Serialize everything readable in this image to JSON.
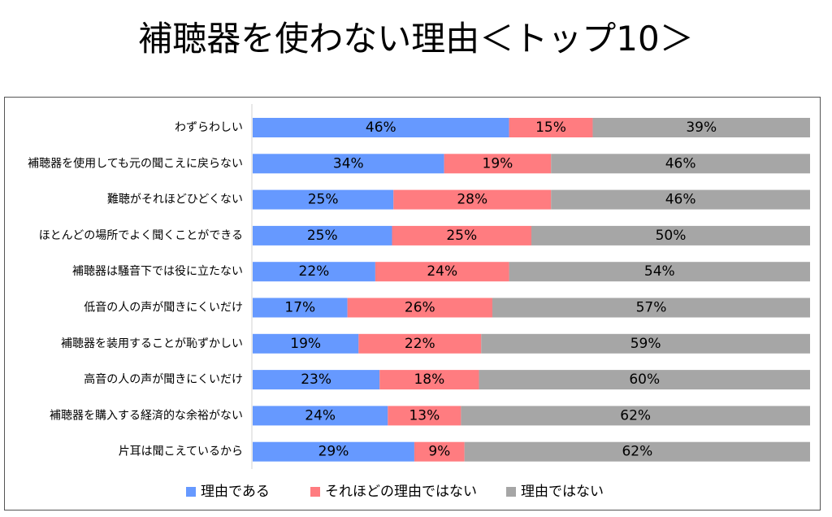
{
  "title": "補聴器を使わない理由＜トップ10＞",
  "chart_data": {
    "type": "bar",
    "orientation": "horizontal",
    "stacked": true,
    "normalized_to_100_percent": true,
    "categories": [
      "わずらわしい",
      "補聴器を使用しても元の聞こえに戻らない",
      "難聴がそれほどひどくない",
      "ほとんどの場所でよく聞くことができる",
      "補聴器は騒音下では役に立たない",
      "低音の人の声が聞きにくいだけ",
      "補聴器を装用することが恥ずかしい",
      "高音の人の声が聞きにくいだけ",
      "補聴器を購入する経済的な余裕がない",
      "片耳は聞こえているから"
    ],
    "series": [
      {
        "name": "理由である",
        "color": "#6699FF",
        "values": [
          46,
          34,
          25,
          25,
          22,
          17,
          19,
          23,
          24,
          29
        ]
      },
      {
        "name": "それほどの理由ではない",
        "color": "#FF7C80",
        "values": [
          15,
          19,
          28,
          25,
          24,
          26,
          22,
          18,
          13,
          9
        ]
      },
      {
        "name": "理由ではない",
        "color": "#A6A6A6",
        "values": [
          39,
          46,
          46,
          50,
          54,
          57,
          59,
          60,
          62,
          62
        ]
      }
    ],
    "value_suffix": "%",
    "legend_position": "bottom",
    "grid": false
  }
}
